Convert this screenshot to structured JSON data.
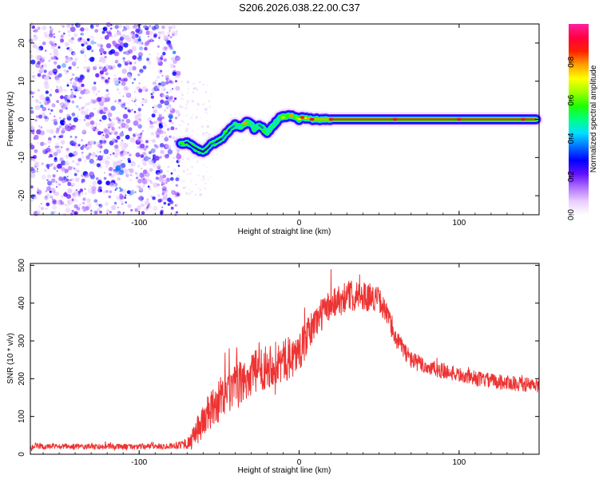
{
  "title": "S206.2026.038.22.00.C37",
  "chart_data": [
    {
      "type": "heatmap",
      "name": "spectrogram",
      "xlabel": "Height of straight line (km)",
      "ylabel": "Frequency (Hz)",
      "xlim": [
        -168,
        150
      ],
      "ylim": [
        -25,
        25
      ],
      "xticks": [
        -100,
        0,
        100
      ],
      "xtick_labels": [
        "-100",
        "0",
        "100"
      ],
      "yticks": [
        -20,
        -10,
        0,
        10,
        20
      ],
      "ytick_labels": [
        "-20",
        "-10",
        "0",
        "10",
        "20"
      ],
      "noise_region_x": [
        -168,
        -75
      ],
      "ridge": {
        "x": [
          -74,
          -70,
          -67,
          -63,
          -60,
          -57,
          -55,
          -52,
          -48,
          -45,
          -43,
          -40,
          -37,
          -35,
          -33,
          -30,
          -28,
          -25,
          -22,
          -20,
          -18,
          -15,
          -12,
          -8,
          -5,
          -2,
          0,
          2,
          5,
          8,
          12,
          20,
          40,
          80,
          120,
          148
        ],
        "y": [
          -6.5,
          -6.0,
          -7.0,
          -8.0,
          -8.5,
          -7.5,
          -6.5,
          -6.0,
          -5.0,
          -3.5,
          -2.5,
          -1.5,
          -2.0,
          -1.5,
          -0.8,
          -1.0,
          -2.5,
          -1.5,
          -2.5,
          -3.5,
          -2.5,
          -1.0,
          0.5,
          0.8,
          1.0,
          0.5,
          0.0,
          0.5,
          0.3,
          0.0,
          0.0,
          0.0,
          0.0,
          0.0,
          0.0,
          0.0
        ],
        "amplitude": [
          0.3,
          0.3,
          0.25,
          0.25,
          0.25,
          0.3,
          0.3,
          0.35,
          0.3,
          0.35,
          0.3,
          0.35,
          0.4,
          0.45,
          0.55,
          0.5,
          0.45,
          0.4,
          0.35,
          0.4,
          0.4,
          0.45,
          0.45,
          0.55,
          0.6,
          0.6,
          0.65,
          0.7,
          0.7,
          0.75,
          0.75,
          0.8,
          0.85,
          0.85,
          0.85,
          0.85
        ]
      },
      "colorbar": {
        "label": "Normalized spectral amplitude",
        "range": [
          0,
          1
        ],
        "ticks": [
          0.0,
          0.2,
          0.4,
          0.6,
          0.8
        ],
        "tick_labels": [
          "0.0",
          "0.2",
          "0.4",
          "0.6",
          "0.8"
        ],
        "colors": [
          "#ffffff",
          "#e8ccff",
          "#b070ff",
          "#6010ff",
          "#0000ff",
          "#0070ff",
          "#00e0ff",
          "#00ff80",
          "#20ff00",
          "#a0ff00",
          "#ffff00",
          "#ffa000",
          "#ff2000",
          "#ff0040",
          "#ff20a0"
        ]
      }
    },
    {
      "type": "line",
      "name": "snr",
      "xlabel": "Height of straight line (km)",
      "ylabel": "SNR (10 * v/v)",
      "xlim": [
        -168,
        150
      ],
      "ylim": [
        0,
        505
      ],
      "xticks": [
        -100,
        0,
        100
      ],
      "xtick_labels": [
        "-100",
        "0",
        "100"
      ],
      "yticks": [
        0,
        100,
        200,
        300,
        400,
        500
      ],
      "ytick_labels": [
        "0",
        "100",
        "200",
        "300",
        "400",
        "500"
      ],
      "color": "#ee3333",
      "envelope": {
        "x": [
          -168,
          -140,
          -120,
          -100,
          -80,
          -68,
          -60,
          -50,
          -40,
          -30,
          -20,
          -10,
          0,
          10,
          20,
          30,
          40,
          50,
          55,
          60,
          70,
          80,
          90,
          100,
          110,
          120,
          130,
          140,
          150
        ],
        "y": [
          20,
          20,
          20,
          20,
          22,
          30,
          90,
          140,
          175,
          210,
          235,
          245,
          270,
          350,
          400,
          420,
          420,
          410,
          370,
          310,
          250,
          230,
          220,
          210,
          200,
          195,
          190,
          185,
          180
        ]
      },
      "noise_amplitude": {
        "x": [
          -168,
          -80,
          -70,
          -60,
          -40,
          -10,
          10,
          40,
          60,
          100,
          150
        ],
        "y": [
          8,
          8,
          15,
          50,
          60,
          60,
          45,
          40,
          25,
          20,
          20
        ]
      }
    }
  ]
}
